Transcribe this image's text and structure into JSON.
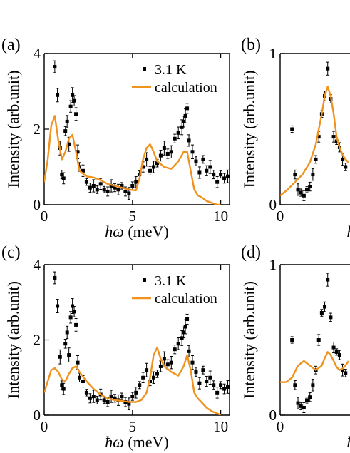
{
  "colors": {
    "calculation": "#f0921e",
    "data": "#000000",
    "axis": "#000000"
  },
  "chart_data": [
    {
      "type": "scatter",
      "panel_label": "(a)",
      "xlabel_prefix": "ħω",
      "xlabel_unit": " (meV)",
      "ylabel": "Intensity (arb.unit)",
      "xlim": [
        0,
        10.5
      ],
      "ylim": [
        0,
        4
      ],
      "xticks": [
        "0",
        "5",
        "10"
      ],
      "yticks": [
        "0",
        "2",
        "4"
      ],
      "legend": {
        "position": "top-right",
        "data_label": "3.1 K",
        "calc_label": "calculation"
      },
      "series": [
        {
          "name": "3.1 K",
          "kind": "points",
          "x": [
            0.6,
            0.75,
            0.9,
            1.0,
            1.1,
            1.2,
            1.3,
            1.4,
            1.5,
            1.6,
            1.7,
            1.8,
            1.9,
            2.0,
            2.2,
            2.4,
            2.6,
            2.8,
            3.0,
            3.2,
            3.4,
            3.6,
            3.8,
            4.0,
            4.2,
            4.4,
            4.6,
            4.8,
            5.0,
            5.2,
            5.4,
            5.6,
            5.8,
            6.0,
            6.2,
            6.4,
            6.6,
            6.8,
            7.0,
            7.2,
            7.4,
            7.6,
            7.8,
            7.9,
            8.0,
            8.1,
            8.2,
            8.4,
            8.6,
            8.8,
            9.0,
            9.2,
            9.4,
            9.6,
            9.8,
            10.0,
            10.2,
            10.4
          ],
          "y": [
            3.65,
            2.9,
            1.5,
            0.8,
            0.7,
            1.95,
            2.2,
            1.6,
            2.6,
            2.9,
            2.75,
            2.4,
            1.4,
            1.0,
            0.9,
            0.6,
            0.45,
            0.5,
            0.4,
            0.55,
            0.4,
            0.35,
            0.5,
            0.45,
            0.4,
            0.5,
            0.35,
            0.3,
            0.5,
            0.6,
            0.8,
            1.0,
            1.2,
            0.9,
            1.0,
            1.1,
            1.3,
            1.5,
            1.35,
            1.4,
            1.75,
            1.9,
            2.05,
            2.2,
            2.35,
            2.55,
            1.7,
            1.4,
            1.15,
            0.85,
            1.2,
            0.9,
            1.0,
            0.8,
            0.6,
            0.8,
            0.7,
            0.75
          ]
        },
        {
          "name": "calculation",
          "kind": "line",
          "x": [
            0,
            0.2,
            0.4,
            0.6,
            0.8,
            1.0,
            1.2,
            1.4,
            1.6,
            1.8,
            2.0,
            2.4,
            2.8,
            3.2,
            3.6,
            4.0,
            4.4,
            4.8,
            5.2,
            5.4,
            5.6,
            5.8,
            6.0,
            6.2,
            6.4,
            6.8,
            7.2,
            7.6,
            7.9,
            8.1,
            8.3,
            8.5,
            8.7,
            8.9,
            9.2,
            9.5,
            9.8,
            10.0
          ],
          "y": [
            0.6,
            1.2,
            2.1,
            2.35,
            1.7,
            1.2,
            1.4,
            1.75,
            1.85,
            1.4,
            0.9,
            0.75,
            0.72,
            0.65,
            0.55,
            0.5,
            0.45,
            0.4,
            0.38,
            0.7,
            1.2,
            1.5,
            1.6,
            1.4,
            1.15,
            1.0,
            0.95,
            1.15,
            1.4,
            1.4,
            0.9,
            0.4,
            0.25,
            0.2,
            0.1,
            0.05,
            0.0,
            0.0
          ]
        }
      ]
    },
    {
      "type": "scatter",
      "panel_label": "(b)",
      "xlabel_prefix": "ħ",
      "xlabel_unit": "",
      "ylabel": "Intensity (arb.unit)",
      "xlim": [
        0,
        4.7
      ],
      "ylim": [
        0,
        1
      ],
      "xticks": [
        "0"
      ],
      "yticks": [
        "0",
        "1"
      ],
      "series": [
        {
          "name": "3.1 K",
          "kind": "points",
          "x": [
            0.8,
            1.0,
            1.2,
            1.4,
            1.6,
            1.8,
            2.0,
            2.2,
            2.4,
            2.6,
            2.8,
            3.0,
            3.2,
            3.4,
            3.6,
            3.8,
            4.0,
            4.2,
            4.4
          ],
          "y": [
            0.5,
            0.2,
            0.1,
            0.08,
            0.06,
            0.1,
            0.12,
            0.2,
            0.3,
            0.45,
            0.6,
            0.72,
            0.9,
            0.7,
            0.45,
            0.42,
            0.38,
            0.3,
            0.25
          ]
        },
        {
          "name": "calculation",
          "kind": "line",
          "x": [
            0,
            0.5,
            1.0,
            1.5,
            2.0,
            2.4,
            2.8,
            3.0,
            3.2,
            3.4,
            3.6,
            3.8,
            4.0,
            4.2,
            4.4,
            4.6
          ],
          "y": [
            0.06,
            0.1,
            0.15,
            0.2,
            0.28,
            0.4,
            0.6,
            0.72,
            0.78,
            0.72,
            0.6,
            0.45,
            0.38,
            0.33,
            0.3,
            0.28
          ]
        }
      ]
    },
    {
      "type": "scatter",
      "panel_label": "(c)",
      "xlabel_prefix": "ħω",
      "xlabel_unit": " (meV)",
      "ylabel": "Intensity (arb.unit)",
      "xlim": [
        0,
        10.5
      ],
      "ylim": [
        0,
        4
      ],
      "xticks": [
        "0",
        "5",
        "10"
      ],
      "yticks": [
        "0",
        "2",
        "4"
      ],
      "legend": {
        "position": "top-right",
        "data_label": "3.1 K",
        "calc_label": "calculation"
      },
      "series": [
        {
          "name": "3.1 K",
          "kind": "points",
          "x": [
            0.6,
            0.75,
            0.9,
            1.0,
            1.1,
            1.2,
            1.3,
            1.4,
            1.5,
            1.6,
            1.7,
            1.8,
            1.9,
            2.0,
            2.2,
            2.4,
            2.6,
            2.8,
            3.0,
            3.2,
            3.4,
            3.6,
            3.8,
            4.0,
            4.2,
            4.4,
            4.6,
            4.8,
            5.0,
            5.2,
            5.4,
            5.6,
            5.8,
            6.0,
            6.2,
            6.4,
            6.6,
            6.8,
            7.0,
            7.2,
            7.4,
            7.6,
            7.8,
            7.9,
            8.0,
            8.1,
            8.2,
            8.4,
            8.6,
            8.8,
            9.0,
            9.2,
            9.4,
            9.6,
            9.8,
            10.0,
            10.2,
            10.4
          ],
          "y": [
            3.65,
            2.9,
            1.55,
            0.8,
            0.7,
            1.9,
            2.2,
            1.6,
            2.6,
            2.9,
            2.75,
            2.4,
            1.4,
            1.0,
            0.9,
            0.6,
            0.45,
            0.5,
            0.4,
            0.55,
            0.4,
            0.35,
            0.5,
            0.45,
            0.4,
            0.5,
            0.35,
            0.3,
            0.5,
            0.6,
            0.8,
            1.0,
            1.2,
            0.9,
            1.0,
            1.1,
            1.3,
            1.5,
            1.35,
            1.4,
            1.75,
            1.9,
            2.05,
            2.2,
            2.35,
            2.55,
            1.7,
            1.4,
            1.15,
            0.85,
            1.2,
            0.9,
            1.0,
            0.8,
            0.6,
            0.8,
            0.7,
            0.75
          ]
        },
        {
          "name": "calculation",
          "kind": "line",
          "x": [
            0,
            0.2,
            0.4,
            0.6,
            0.8,
            1.0,
            1.2,
            1.4,
            1.6,
            1.8,
            2.0,
            2.4,
            2.8,
            3.2,
            3.6,
            4.0,
            4.4,
            4.8,
            5.2,
            5.5,
            5.8,
            6.0,
            6.2,
            6.4,
            6.6,
            6.8,
            7.2,
            7.6,
            7.9,
            8.1,
            8.3,
            8.5,
            8.7,
            8.9,
            9.2,
            9.5,
            9.8,
            10.0
          ],
          "y": [
            0.6,
            0.9,
            1.2,
            1.25,
            1.15,
            0.95,
            0.9,
            1.1,
            1.25,
            1.3,
            1.15,
            0.9,
            0.7,
            0.55,
            0.45,
            0.4,
            0.38,
            0.35,
            0.35,
            0.4,
            0.6,
            1.0,
            1.6,
            1.8,
            1.5,
            1.3,
            1.15,
            1.05,
            1.3,
            1.6,
            1.2,
            0.6,
            0.45,
            0.35,
            0.2,
            0.1,
            0.05,
            0.0
          ]
        }
      ]
    },
    {
      "type": "scatter",
      "panel_label": "(d)",
      "xlabel_prefix": "ħ",
      "xlabel_unit": "",
      "ylabel": "Intensity (arb.unit)",
      "xlim": [
        0,
        4.7
      ],
      "ylim": [
        0,
        1
      ],
      "xticks": [
        "0"
      ],
      "yticks": [
        "0",
        "1"
      ],
      "series": [
        {
          "name": "3.1 K",
          "kind": "points",
          "x": [
            0.8,
            1.0,
            1.2,
            1.4,
            1.6,
            1.8,
            2.0,
            2.2,
            2.4,
            2.6,
            2.8,
            3.0,
            3.2,
            3.4,
            3.6,
            3.8,
            4.0,
            4.2,
            4.4
          ],
          "y": [
            0.5,
            0.2,
            0.08,
            0.06,
            0.05,
            0.1,
            0.12,
            0.2,
            0.3,
            0.5,
            0.68,
            0.72,
            0.9,
            0.65,
            0.45,
            0.42,
            0.4,
            0.3,
            0.28
          ]
        },
        {
          "name": "calculation",
          "kind": "line",
          "x": [
            0,
            0.4,
            0.8,
            1.2,
            1.6,
            2.0,
            2.4,
            2.8,
            3.0,
            3.2,
            3.4,
            3.6,
            3.8,
            4.0,
            4.2,
            4.4,
            4.6
          ],
          "y": [
            0.22,
            0.22,
            0.25,
            0.33,
            0.36,
            0.33,
            0.3,
            0.33,
            0.38,
            0.42,
            0.4,
            0.36,
            0.32,
            0.3,
            0.31,
            0.33,
            0.36
          ]
        }
      ]
    }
  ]
}
